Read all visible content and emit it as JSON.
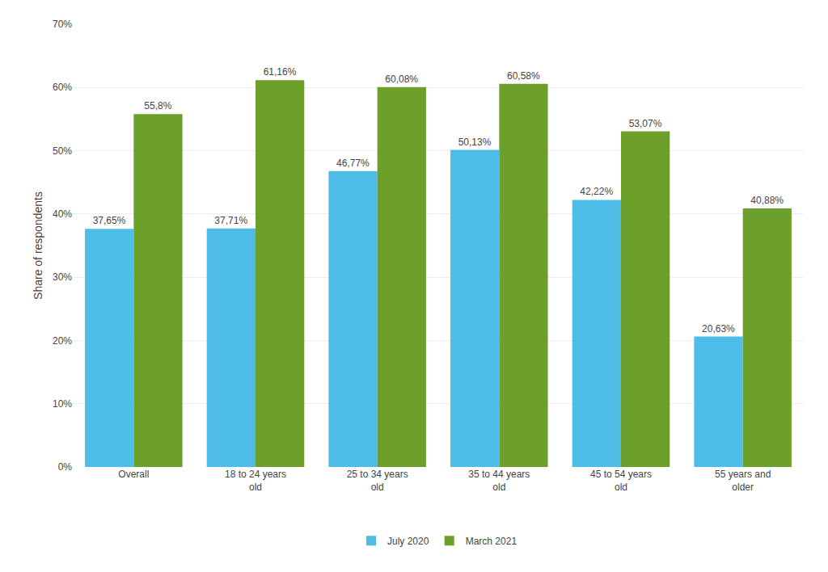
{
  "chart_data": {
    "type": "bar",
    "categories": [
      "Overall",
      "18 to 24 years\nold",
      "25 to 34 years\nold",
      "35 to 44 years\nold",
      "45 to 54 years\nold",
      "55 years and\nolder"
    ],
    "series": [
      {
        "name": "July 2020",
        "color": "#4DBDE8",
        "values": [
          37.65,
          37.71,
          46.77,
          50.13,
          42.22,
          20.63
        ],
        "value_labels": [
          "37,65%",
          "37,71%",
          "46,77%",
          "50,13%",
          "42,22%",
          "20,63%"
        ]
      },
      {
        "name": "March 2021",
        "color": "#6DA02A",
        "values": [
          55.8,
          61.16,
          60.08,
          60.58,
          53.07,
          40.88
        ],
        "value_labels": [
          "55,8%",
          "61,16%",
          "60,08%",
          "60,58%",
          "53,07%",
          "40,88%"
        ]
      }
    ],
    "y_label": "Share of respondents",
    "ylim": [
      0,
      70
    ],
    "yticks": [
      {
        "value": 0,
        "label": "0%"
      },
      {
        "value": 10,
        "label": "10%"
      },
      {
        "value": 20,
        "label": "20%"
      },
      {
        "value": 30,
        "label": "30%"
      },
      {
        "value": 40,
        "label": "40%"
      },
      {
        "value": 50,
        "label": "50%"
      },
      {
        "value": 60,
        "label": "60%"
      },
      {
        "value": 70,
        "label": "70%"
      }
    ],
    "grid": true,
    "legend": "bottom",
    "data_labels": true
  }
}
